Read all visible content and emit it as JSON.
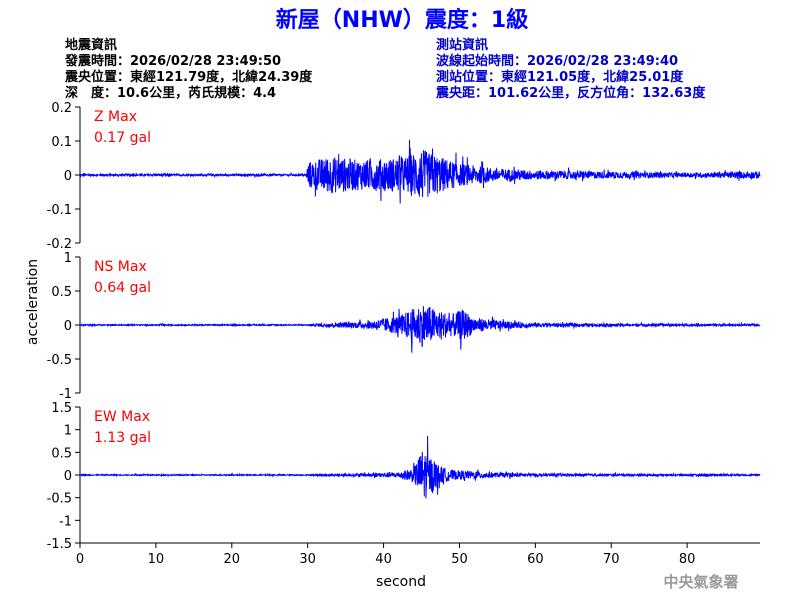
{
  "header": {
    "title": "新屋（NHW）震度：1級",
    "title_color": "#0000ff",
    "quake_heading": "地震資訊",
    "quake_time": "發震時間：2026/02/28 23:49:50",
    "quake_epicenter": "震央位置：東經121.79度，北緯24.39度",
    "quake_depth_mag": "深　度：10.6公里，芮氏規模：4.4",
    "station_heading": "測站資訊",
    "station_wave_start": "波線起始時間：2026/02/28 23:49:40",
    "station_location": "測站位置：東經121.05度，北緯25.01度",
    "station_distance": "震央距：101.62公里，反方位角：132.63度",
    "station_color": "#0000cc"
  },
  "footer": {
    "agency": "中央氣象署"
  },
  "chart_data": {
    "type": "line",
    "ylabel": "acceleration",
    "xlabel": "second",
    "xlim": [
      0,
      89.6
    ],
    "xticks": [
      "0",
      "10",
      "20",
      "30",
      "40",
      "50",
      "60",
      "70",
      "80"
    ],
    "trace_color": "#0000ff",
    "label_color": "#ff0000",
    "panels": [
      {
        "component": "Z",
        "max_label": "Z Max",
        "max_value": "0.17 gal",
        "ylim": [
          -0.2,
          0.2
        ],
        "yticks": [
          "0.2",
          "0.1",
          "0",
          "-0.1",
          "-0.2"
        ],
        "envelope": [
          [
            0,
            0.005
          ],
          [
            29.8,
            0.005
          ],
          [
            30,
            0.07
          ],
          [
            33,
            0.1
          ],
          [
            37,
            0.08
          ],
          [
            41,
            0.09
          ],
          [
            43,
            0.1
          ],
          [
            45,
            0.14
          ],
          [
            46,
            0.12
          ],
          [
            48,
            0.09
          ],
          [
            50,
            0.06
          ],
          [
            55,
            0.035
          ],
          [
            60,
            0.025
          ],
          [
            70,
            0.018
          ],
          [
            80,
            0.012
          ],
          [
            89.6,
            0.02
          ]
        ]
      },
      {
        "component": "NS",
        "max_label": "NS Max",
        "max_value": "0.64 gal",
        "ylim": [
          -1,
          1
        ],
        "yticks": [
          "1",
          "0.5",
          "0",
          "-0.5",
          "-1"
        ],
        "envelope": [
          [
            0,
            0.015
          ],
          [
            30,
            0.015
          ],
          [
            32,
            0.05
          ],
          [
            38,
            0.1
          ],
          [
            42,
            0.25
          ],
          [
            44,
            0.45
          ],
          [
            45.3,
            0.6
          ],
          [
            47,
            0.4
          ],
          [
            49,
            0.3
          ],
          [
            50.5,
            0.42
          ],
          [
            52,
            0.2
          ],
          [
            56,
            0.1
          ],
          [
            60,
            0.06
          ],
          [
            70,
            0.035
          ],
          [
            89.6,
            0.025
          ]
        ]
      },
      {
        "component": "EW",
        "max_label": "EW Max",
        "max_value": "1.13 gal",
        "ylim": [
          -1.5,
          1.5
        ],
        "yticks": [
          "1.5",
          "1",
          "0.5",
          "0",
          "-0.5",
          "-1",
          "-1.5"
        ],
        "envelope": [
          [
            0,
            0.02
          ],
          [
            30,
            0.02
          ],
          [
            33,
            0.04
          ],
          [
            38,
            0.07
          ],
          [
            42,
            0.12
          ],
          [
            44,
            0.3
          ],
          [
            45.2,
            1.1
          ],
          [
            46.3,
            0.7
          ],
          [
            47.5,
            0.35
          ],
          [
            49,
            0.2
          ],
          [
            52,
            0.15
          ],
          [
            55,
            0.1
          ],
          [
            60,
            0.06
          ],
          [
            70,
            0.04
          ],
          [
            89.6,
            0.03
          ]
        ]
      }
    ]
  }
}
